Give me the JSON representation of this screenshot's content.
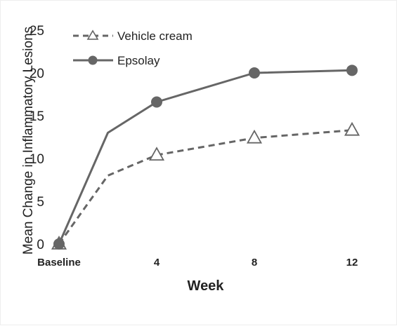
{
  "chart_data": {
    "type": "line",
    "title": "",
    "xlabel": "Week",
    "ylabel": "Mean Change in Inflammatory Lesions",
    "x": [
      0,
      2,
      4,
      8,
      12
    ],
    "x_tick_values": [
      0,
      4,
      8,
      12
    ],
    "x_tick_labels": [
      "Baseline",
      "4",
      "8",
      "12"
    ],
    "xlim": [
      0,
      12
    ],
    "ylim": [
      0,
      25
    ],
    "y_ticks": [
      0,
      5,
      10,
      15,
      20,
      25
    ],
    "grid": false,
    "legend_position": "top-left",
    "series": [
      {
        "name": "Vehicle cream",
        "values": [
          0,
          8,
          10.4,
          12.4,
          13.3
        ],
        "marker_at": [
          0,
          4,
          8,
          12
        ],
        "marker": "triangle-open",
        "line_style": "dashed",
        "color": "#666666"
      },
      {
        "name": "Epsolay",
        "values": [
          0,
          13,
          16.6,
          20,
          20.3
        ],
        "marker_at": [
          0,
          4,
          8,
          12
        ],
        "marker": "circle-filled",
        "line_style": "solid",
        "color": "#666666"
      }
    ]
  }
}
